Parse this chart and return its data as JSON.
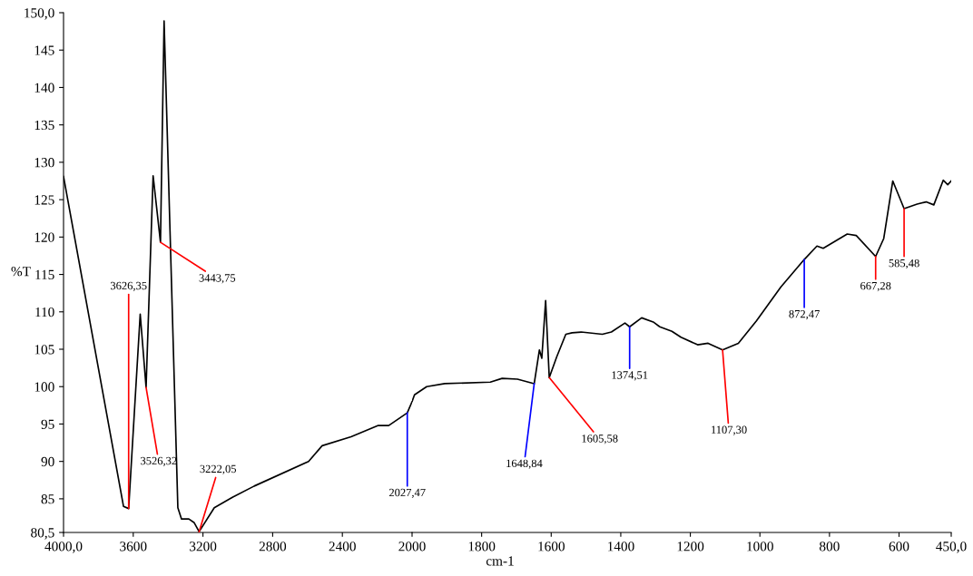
{
  "chart_data": [
    {
      "type": "line",
      "ylabel": "%T",
      "series": [
        {
          "color": "#000000",
          "x": [
            4000,
            3656,
            3626.35,
            3560,
            3526.32,
            3486,
            3443.75,
            3423,
            3344,
            3323,
            3281,
            3250,
            3222.05,
            3135,
            3031,
            2906,
            2594,
            2516,
            2350,
            2194,
            2134,
            2027.47,
            2000
          ],
          "values": [
            128.1,
            84.0,
            83.7,
            109.7,
            99.9,
            128.2,
            119.3,
            148.9,
            83.8,
            82.3,
            82.3,
            81.8,
            80.6,
            83.8,
            85.2,
            86.7,
            90.0,
            92.1,
            93.3,
            94.8,
            94.8,
            96.5,
            98.0
          ]
        }
      ],
      "xlim": [
        4000,
        2000
      ],
      "xticks": [
        {
          "value": 4000,
          "label": "4000,0"
        },
        3600,
        3200,
        2800,
        2400
      ],
      "ylim": [
        80.5,
        150
      ],
      "yticks": [
        {
          "value": 80.5,
          "label": "80,5"
        },
        85,
        90,
        95,
        100,
        105,
        110,
        115,
        120,
        125,
        130,
        135,
        140,
        145,
        {
          "value": 150,
          "label": "150,0"
        }
      ],
      "line_style": "solid",
      "annotations": [
        {
          "text": "3626,35",
          "x": 3626.35,
          "y": 83.7
        },
        {
          "text": "3526,32",
          "x": 3526.32,
          "y": 99.9
        },
        {
          "text": "3443,75",
          "x": 3443.75,
          "y": 119.3
        },
        {
          "text": "3222,05",
          "x": 3222.05,
          "y": 80.6
        },
        {
          "text": "2027,47",
          "x": 2027.47,
          "y": 96.5
        }
      ]
    },
    {
      "type": "line",
      "xlabel": "cm-1",
      "tick_labels": "x",
      "series": [
        {
          "color": "#000000",
          "x": [
            2000,
            1993,
            1958,
            1906,
            1775,
            1741,
            1697,
            1648.84,
            1634,
            1627,
            1616,
            1605.58,
            1584,
            1558,
            1540,
            1514,
            1453,
            1427,
            1388,
            1374.51,
            1340,
            1305,
            1288,
            1253,
            1227,
            1179,
            1149,
            1107.3,
            1062,
            1010,
            940,
            872.47,
            836,
            818,
            749,
            723,
            667.28,
            644,
            618,
            585.48,
            548,
            522,
            500,
            473,
            460,
            450
          ],
          "values": [
            98.0,
            98.9,
            100.0,
            100.4,
            100.6,
            101.1,
            101.0,
            100.4,
            104.9,
            103.8,
            111.5,
            101.2,
            104.0,
            107.0,
            107.2,
            107.3,
            107.0,
            107.3,
            108.5,
            108.0,
            109.2,
            108.6,
            108.0,
            107.4,
            106.6,
            105.6,
            105.8,
            104.9,
            105.8,
            108.8,
            113.3,
            117.0,
            118.8,
            118.5,
            120.4,
            120.2,
            117.4,
            119.8,
            127.5,
            123.8,
            124.4,
            124.7,
            124.3,
            127.6,
            127.0,
            127.5
          ]
        }
      ],
      "xlim": [
        2000,
        450
      ],
      "xticks": [
        2000,
        1800,
        1600,
        1400,
        1200,
        1000,
        800,
        600,
        {
          "value": 450,
          "label": "450,0"
        }
      ],
      "ylim": [
        80.5,
        150
      ],
      "line_style": "solid",
      "annotations": [
        {
          "text": "1648,84",
          "x": 1648.84,
          "y": 100.4
        },
        {
          "text": "1605,58",
          "x": 1605.58,
          "y": 101.2
        },
        {
          "text": "1374,51",
          "x": 1374.51,
          "y": 108.0
        },
        {
          "text": "1107,30",
          "x": 1107.3,
          "y": 104.9
        },
        {
          "text": "872,47",
          "x": 872.47,
          "y": 117.0
        },
        {
          "text": "667,28",
          "x": 667.28,
          "y": 117.4
        },
        {
          "text": "585,48",
          "x": 585.48,
          "y": 123.8
        }
      ]
    }
  ]
}
